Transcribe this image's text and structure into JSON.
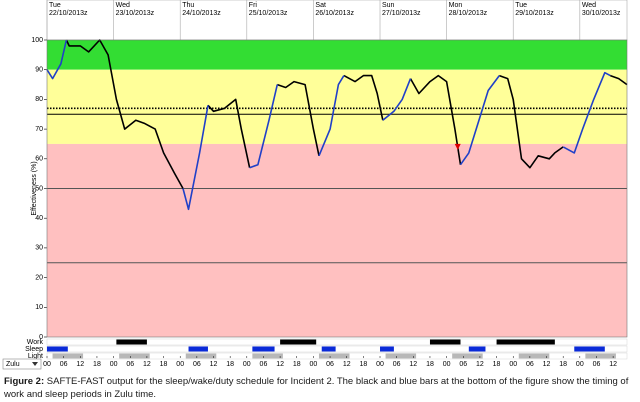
{
  "chart_data": {
    "type": "line",
    "y_label": "Effectiveness (%)",
    "xlim": [
      0,
      209
    ],
    "ylim": [
      0,
      100
    ],
    "yticks": [
      0,
      10,
      20,
      30,
      40,
      50,
      60,
      70,
      80,
      90,
      100
    ],
    "xticks": [
      {
        "value": 0,
        "label": "00"
      },
      {
        "value": 6,
        "label": "06"
      },
      {
        "value": 12,
        "label": "12"
      },
      {
        "value": 18,
        "label": "18"
      },
      {
        "value": 24,
        "label": "00"
      },
      {
        "value": 30,
        "label": "06"
      },
      {
        "value": 36,
        "label": "12"
      },
      {
        "value": 42,
        "label": "18"
      },
      {
        "value": 48,
        "label": "00"
      },
      {
        "value": 54,
        "label": "06"
      },
      {
        "value": 60,
        "label": "12"
      },
      {
        "value": 66,
        "label": "18"
      },
      {
        "value": 72,
        "label": "00"
      },
      {
        "value": 78,
        "label": "06"
      },
      {
        "value": 84,
        "label": "12"
      },
      {
        "value": 90,
        "label": "18"
      },
      {
        "value": 96,
        "label": "00"
      },
      {
        "value": 102,
        "label": "06"
      },
      {
        "value": 108,
        "label": "12"
      },
      {
        "value": 114,
        "label": "18"
      },
      {
        "value": 120,
        "label": "00"
      },
      {
        "value": 126,
        "label": "06"
      },
      {
        "value": 132,
        "label": "12"
      },
      {
        "value": 138,
        "label": "18"
      },
      {
        "value": 144,
        "label": "00"
      },
      {
        "value": 150,
        "label": "06"
      },
      {
        "value": 156,
        "label": "12"
      },
      {
        "value": 162,
        "label": "18"
      },
      {
        "value": 168,
        "label": "00"
      },
      {
        "value": 174,
        "label": "06"
      },
      {
        "value": 180,
        "label": "12"
      },
      {
        "value": 186,
        "label": "18"
      },
      {
        "value": 192,
        "label": "00"
      },
      {
        "value": 198,
        "label": "06"
      },
      {
        "value": 204,
        "label": "12"
      }
    ],
    "day_ticks": [
      {
        "value": 0,
        "day": "Tue",
        "label": "22/10/2013z"
      },
      {
        "value": 24,
        "day": "Wed",
        "label": "23/10/2013z"
      },
      {
        "value": 48,
        "day": "Thu",
        "label": "24/10/2013z"
      },
      {
        "value": 72,
        "day": "Fri",
        "label": "25/10/2013z"
      },
      {
        "value": 96,
        "day": "Sat",
        "label": "26/10/2013z"
      },
      {
        "value": 120,
        "day": "Sun",
        "label": "27/10/2013z"
      },
      {
        "value": 144,
        "day": "Mon",
        "label": "28/10/2013z"
      },
      {
        "value": 168,
        "day": "Tue",
        "label": "29/10/2013z"
      },
      {
        "value": 192,
        "day": "Wed",
        "label": "30/10/2013z"
      }
    ],
    "bands": [
      {
        "range": [
          90,
          100
        ],
        "color": "#33dd33"
      },
      {
        "range": [
          65,
          90
        ],
        "color": "#ffff99"
      },
      {
        "range": [
          0,
          65
        ],
        "color": "#ffc0c0"
      }
    ],
    "ref_lines": [
      {
        "value": 77,
        "style": "dotted",
        "color": "#000000"
      },
      {
        "value": 75,
        "style": "solid",
        "color": "#000000"
      },
      {
        "value": 50,
        "style": "solid",
        "color": "#555555"
      },
      {
        "value": 25,
        "style": "solid",
        "color": "#555555"
      }
    ],
    "x": [
      0,
      2,
      5,
      7,
      8,
      12,
      15,
      19,
      22,
      25,
      28,
      32,
      35,
      39,
      42,
      46,
      49,
      51,
      55,
      58,
      60,
      64,
      68,
      70,
      73,
      76,
      80,
      83,
      86,
      89,
      93,
      96,
      98,
      102,
      105,
      107,
      111,
      114,
      117,
      119,
      121,
      125,
      128,
      131,
      134,
      138,
      141,
      144,
      147,
      149,
      152,
      156,
      159,
      163,
      166,
      168,
      171,
      174,
      177,
      181,
      183,
      186,
      190,
      193,
      197,
      201,
      203,
      206,
      209
    ],
    "series": [
      {
        "color": "#000000",
        "values": [
          null,
          null,
          null,
          100,
          98,
          98,
          96,
          100,
          95,
          80,
          70,
          73,
          72,
          70,
          62,
          55,
          50,
          null,
          null,
          78,
          76,
          77,
          80,
          70,
          57,
          null,
          null,
          85,
          84,
          86,
          85,
          70,
          61,
          null,
          null,
          88,
          86,
          88,
          88,
          82,
          73,
          null,
          null,
          87,
          82,
          86,
          88,
          86,
          70,
          58,
          null,
          null,
          null,
          88,
          87,
          80,
          60,
          57,
          61,
          60,
          62,
          64,
          null,
          null,
          null,
          null,
          88,
          87,
          85
        ]
      },
      {
        "color": "#2040c8",
        "values": [
          90,
          87,
          92,
          100,
          null,
          null,
          null,
          null,
          null,
          null,
          null,
          null,
          null,
          null,
          null,
          null,
          50,
          43,
          62,
          78,
          null,
          null,
          null,
          null,
          57,
          58,
          73,
          85,
          null,
          null,
          null,
          null,
          61,
          70,
          85,
          88,
          null,
          null,
          null,
          null,
          73,
          76,
          80,
          87,
          null,
          null,
          null,
          null,
          null,
          58,
          62,
          74,
          83,
          88,
          null,
          null,
          null,
          null,
          null,
          null,
          null,
          64,
          62,
          70,
          80,
          89,
          88,
          null,
          null
        ]
      }
    ],
    "marker": {
      "x": 148,
      "y": 64,
      "color": "#dd0000"
    },
    "rows": [
      {
        "label": "Work",
        "color": "#000000",
        "periods": [
          [
            25,
            36
          ],
          [
            84,
            97
          ],
          [
            138,
            149
          ],
          [
            162,
            183
          ]
        ]
      },
      {
        "label": "Sleep",
        "color": "#0a2ad8",
        "periods": [
          [
            0,
            7.5
          ],
          [
            51,
            58
          ],
          [
            74,
            82
          ],
          [
            99,
            104
          ],
          [
            120,
            125
          ],
          [
            152,
            158
          ],
          [
            190,
            201
          ]
        ]
      },
      {
        "label": "Light",
        "color": "#b8b8b8",
        "periods": [
          [
            2,
            13
          ],
          [
            26,
            37
          ],
          [
            50,
            61
          ],
          [
            74,
            85
          ],
          [
            98,
            109
          ],
          [
            122,
            133
          ],
          [
            146,
            157
          ],
          [
            170,
            181
          ],
          [
            194,
            205
          ]
        ]
      }
    ],
    "zone_select": "Zulu"
  },
  "caption": {
    "label": "Figure 2:",
    "text": "SAFTE-FAST output for the sleep/wake/duty schedule for Incident 2. The black and blue bars at the bottom of the figure show the timing of work and sleep periods in Zulu time."
  }
}
